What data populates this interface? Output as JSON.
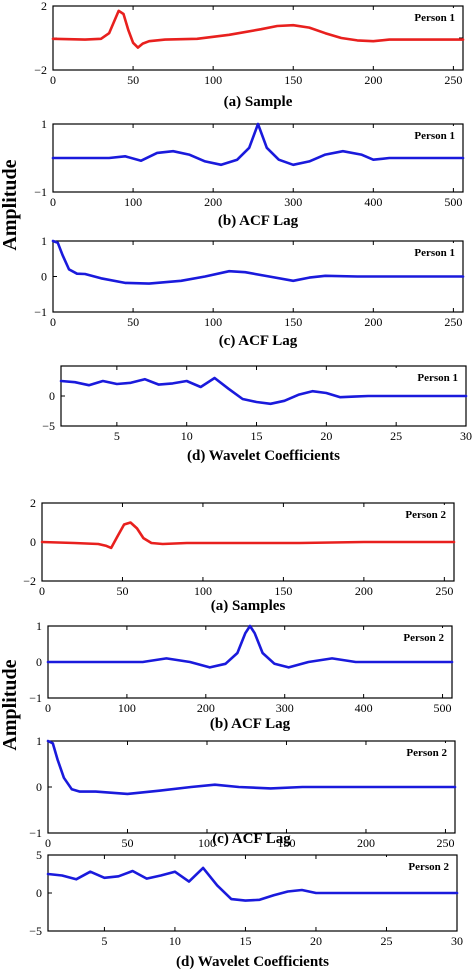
{
  "y_axis_label": "Amplitude",
  "chart_data": [
    {
      "type": "line",
      "caption": "(a) Sample",
      "legend": "Person 1",
      "color": "#e8201e",
      "xlim": [
        0,
        256
      ],
      "ylim": [
        -2,
        2
      ],
      "xticks": [
        "0",
        "50",
        "100",
        "150",
        "200",
        "250"
      ],
      "yticks": [
        "2",
        "",
        "−2"
      ],
      "series": [
        {
          "x": [
            0,
            20,
            30,
            35,
            38,
            41,
            44,
            47,
            50,
            53,
            56,
            60,
            70,
            90,
            110,
            130,
            140,
            150,
            160,
            170,
            180,
            190,
            200,
            210,
            220,
            256
          ],
          "y": [
            -0.05,
            -0.1,
            -0.05,
            0.3,
            1.0,
            1.7,
            1.5,
            0.5,
            -0.3,
            -0.6,
            -0.35,
            -0.2,
            -0.1,
            -0.05,
            0.2,
            0.55,
            0.75,
            0.8,
            0.65,
            0.3,
            0.0,
            -0.15,
            -0.2,
            -0.1,
            -0.1,
            -0.1
          ]
        }
      ]
    },
    {
      "type": "line",
      "caption": "(b) ACF Lag",
      "legend": "Person 1",
      "color": "#1a1adc",
      "xlim": [
        0,
        512
      ],
      "ylim": [
        -1,
        1
      ],
      "xticks": [
        "0",
        "100",
        "200",
        "300",
        "400",
        "500"
      ],
      "yticks": [
        "1",
        "",
        "−1"
      ],
      "series": [
        {
          "x": [
            0,
            70,
            90,
            110,
            130,
            150,
            170,
            190,
            210,
            230,
            245,
            256,
            267,
            282,
            300,
            320,
            340,
            362,
            385,
            400,
            420,
            440,
            512
          ],
          "y": [
            0.0,
            0.0,
            0.05,
            -0.08,
            0.15,
            0.2,
            0.1,
            -0.1,
            -0.2,
            -0.05,
            0.3,
            1.0,
            0.3,
            -0.05,
            -0.2,
            -0.1,
            0.1,
            0.2,
            0.1,
            -0.05,
            0.0,
            0.0,
            0.0
          ]
        }
      ]
    },
    {
      "type": "line",
      "caption": "(c) ACF Lag",
      "legend": "Person 1",
      "color": "#1a1adc",
      "xlim": [
        0,
        256
      ],
      "ylim": [
        -1,
        1
      ],
      "xticks": [
        "0",
        "50",
        "100",
        "150",
        "200",
        "250"
      ],
      "yticks": [
        "1",
        "0",
        "−1"
      ],
      "series": [
        {
          "x": [
            0,
            3,
            6,
            10,
            15,
            20,
            30,
            45,
            60,
            80,
            95,
            110,
            120,
            135,
            150,
            160,
            170,
            190,
            210,
            256
          ],
          "y": [
            1.0,
            0.95,
            0.6,
            0.2,
            0.08,
            0.07,
            -0.05,
            -0.18,
            -0.2,
            -0.12,
            0.0,
            0.15,
            0.12,
            0.0,
            -0.12,
            -0.03,
            0.02,
            0.0,
            0.0,
            0.0
          ]
        }
      ]
    },
    {
      "type": "line",
      "caption": "(d) Wavelet Coefficients",
      "legend": "Person 1",
      "color": "#1a1adc",
      "xlim": [
        1,
        30
      ],
      "ylim": [
        -5,
        5
      ],
      "xticks": [
        "5",
        "10",
        "15",
        "20",
        "25",
        "30"
      ],
      "yticks": [
        "",
        "0",
        "−5"
      ],
      "series": [
        {
          "x": [
            1,
            2,
            3,
            4,
            5,
            6,
            7,
            8,
            9,
            10,
            11,
            12,
            13,
            14,
            15,
            16,
            17,
            18,
            19,
            20,
            21,
            22,
            23,
            24,
            25,
            30
          ],
          "y": [
            2.5,
            2.3,
            1.8,
            2.5,
            2.0,
            2.2,
            2.8,
            1.9,
            2.1,
            2.5,
            1.5,
            3.0,
            1.2,
            -0.5,
            -1.0,
            -1.3,
            -0.8,
            0.2,
            0.8,
            0.5,
            -0.2,
            -0.1,
            0.0,
            0.0,
            0.0,
            0.0
          ]
        }
      ]
    },
    {
      "type": "line",
      "caption": "(a) Samples",
      "legend": "Person 2",
      "color": "#e8201e",
      "xlim": [
        0,
        256
      ],
      "ylim": [
        -2,
        2
      ],
      "xticks": [
        "0",
        "50",
        "100",
        "150",
        "200",
        "250"
      ],
      "yticks": [
        "2",
        "0",
        "−2"
      ],
      "series": [
        {
          "x": [
            0,
            20,
            35,
            40,
            43,
            47,
            51,
            55,
            59,
            63,
            68,
            75,
            90,
            120,
            160,
            200,
            256
          ],
          "y": [
            0.0,
            -0.05,
            -0.1,
            -0.2,
            -0.3,
            0.3,
            0.9,
            1.0,
            0.7,
            0.2,
            -0.05,
            -0.1,
            -0.05,
            -0.05,
            -0.05,
            0.0,
            0.0
          ]
        }
      ]
    },
    {
      "type": "line",
      "caption": "(b) ACF Lag",
      "legend": "Person 2",
      "color": "#1a1adc",
      "xlim": [
        0,
        512
      ],
      "ylim": [
        -1,
        1
      ],
      "xticks": [
        "0",
        "100",
        "200",
        "300",
        "400",
        "500"
      ],
      "yticks": [
        "1",
        "0",
        "−1"
      ],
      "series": [
        {
          "x": [
            0,
            90,
            120,
            150,
            180,
            205,
            225,
            240,
            250,
            256,
            262,
            272,
            287,
            305,
            330,
            360,
            390,
            420,
            512
          ],
          "y": [
            0.0,
            0.0,
            0.0,
            0.1,
            0.0,
            -0.15,
            -0.05,
            0.25,
            0.8,
            1.0,
            0.8,
            0.25,
            -0.05,
            -0.15,
            0.0,
            0.1,
            0.0,
            0.0,
            0.0
          ]
        }
      ]
    },
    {
      "type": "line",
      "caption": "(c) ACF Lag",
      "legend": "Person 2",
      "color": "#1a1adc",
      "xlim": [
        0,
        256
      ],
      "ylim": [
        -1,
        1
      ],
      "xticks": [
        "0",
        "50",
        "100",
        "150",
        "200",
        "250"
      ],
      "yticks": [
        "1",
        "0",
        "−1"
      ],
      "series": [
        {
          "x": [
            0,
            3,
            6,
            10,
            15,
            20,
            30,
            50,
            70,
            90,
            105,
            120,
            140,
            160,
            200,
            256
          ],
          "y": [
            1.0,
            0.95,
            0.6,
            0.2,
            -0.05,
            -0.1,
            -0.1,
            -0.15,
            -0.08,
            0.0,
            0.05,
            0.0,
            -0.03,
            0.0,
            0.0,
            0.0
          ]
        }
      ]
    },
    {
      "type": "line",
      "caption": "(d) Wavelet Coefficients",
      "legend": "Person 2",
      "color": "#1a1adc",
      "xlim": [
        1,
        30
      ],
      "ylim": [
        -5,
        5
      ],
      "xticks": [
        "5",
        "10",
        "15",
        "20",
        "25",
        "30"
      ],
      "yticks": [
        "5",
        "0",
        "−5"
      ],
      "series": [
        {
          "x": [
            1,
            2,
            3,
            4,
            5,
            6,
            7,
            8,
            9,
            10,
            11,
            12,
            13,
            14,
            15,
            16,
            17,
            18,
            19,
            20,
            21,
            22,
            30
          ],
          "y": [
            2.5,
            2.3,
            1.8,
            2.8,
            2.0,
            2.2,
            2.9,
            1.9,
            2.3,
            2.8,
            1.5,
            3.3,
            1.0,
            -0.8,
            -1.0,
            -0.9,
            -0.3,
            0.2,
            0.4,
            0.0,
            0.0,
            0.0,
            0.0
          ]
        }
      ]
    }
  ]
}
